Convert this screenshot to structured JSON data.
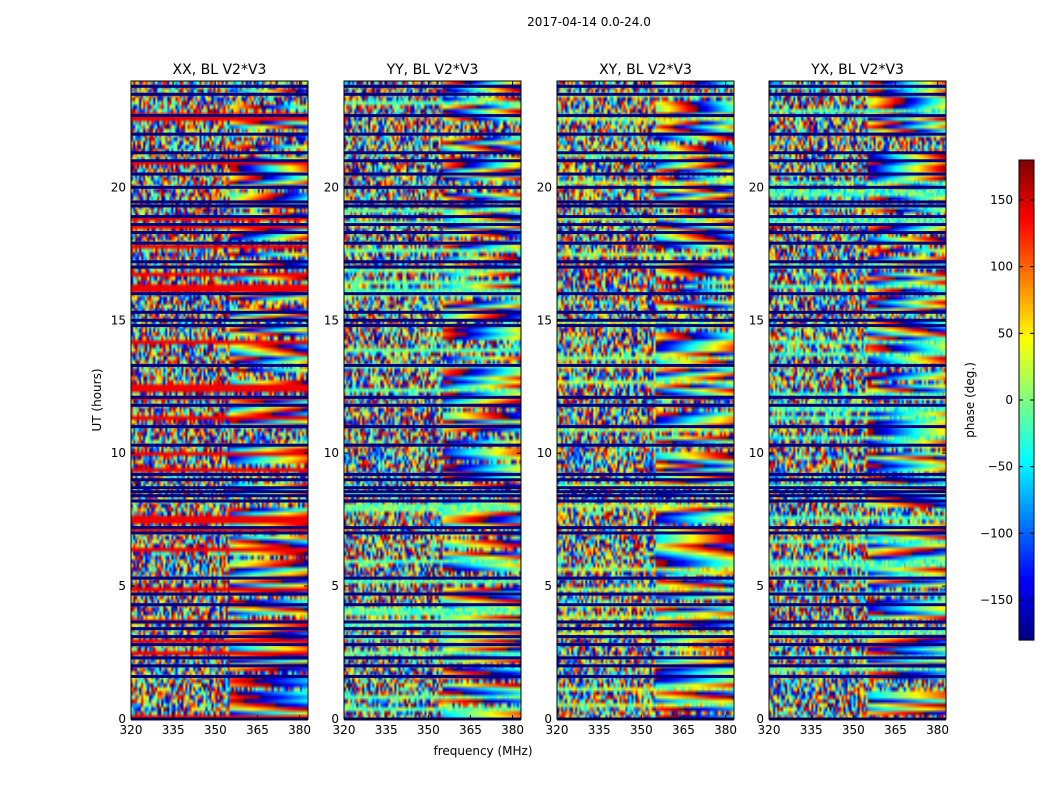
{
  "figure": {
    "suptitle": "2017-04-14 0.0-24.0"
  },
  "chart_data": {
    "type": "heatmap",
    "panels": [
      {
        "title": "XX, BL V2*V3"
      },
      {
        "title": "YY, BL V2*V3"
      },
      {
        "title": "XY, BL V2*V3"
      },
      {
        "title": "YX, BL V2*V3"
      }
    ],
    "xlabel": "frequency (MHz)",
    "ylabel": "UT (hours)",
    "x_ticks": [
      320,
      335,
      350,
      365,
      380
    ],
    "xlim": [
      320,
      383
    ],
    "y_ticks": [
      0,
      5,
      10,
      15,
      20
    ],
    "ylim": [
      0,
      24
    ],
    "colorbar": {
      "label": "phase (deg.)",
      "ticks": [
        150,
        100,
        50,
        0,
        -50,
        -100,
        -150
      ],
      "tick_labels": [
        "150",
        "100",
        "50",
        "0",
        "−50",
        "−100",
        "−150"
      ],
      "range": [
        -180,
        180
      ],
      "colormap": "jet"
    },
    "gap_rows_ut": [
      0.0,
      1.6,
      2.0,
      2.3,
      2.8,
      3.1,
      3.4,
      3.65,
      4.3,
      4.7,
      5.3,
      7.0,
      7.2,
      8.2,
      8.4,
      8.55,
      8.7,
      9.0,
      9.2,
      10.3,
      11.0,
      11.8,
      12.1,
      13.3,
      14.8,
      15.0,
      15.3,
      16.0,
      17.0,
      17.2,
      17.9,
      18.3,
      18.6,
      18.9,
      19.3,
      19.45,
      20.0,
      20.5,
      21.0,
      21.3,
      22.0,
      22.7,
      23.5,
      23.8
    ],
    "zoom_level": ""
  }
}
